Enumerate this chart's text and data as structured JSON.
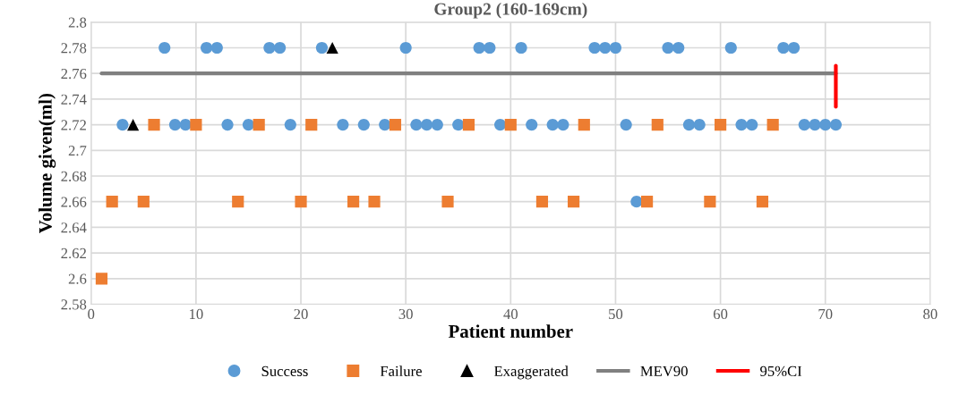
{
  "chart_data": {
    "type": "scatter",
    "title": "Group2 (160-169cm)",
    "xlabel": "Patient number",
    "ylabel": "Volume given(ml)",
    "xlim": [
      0,
      80
    ],
    "xticks": [
      0,
      10,
      20,
      30,
      40,
      50,
      60,
      70,
      80
    ],
    "ylim": [
      2.58,
      2.8
    ],
    "yticks": [
      {
        "value": 2.58,
        "label": "2.58"
      },
      {
        "value": 2.6,
        "label": "2.6"
      },
      {
        "value": 2.62,
        "label": "2.62"
      },
      {
        "value": 2.64,
        "label": "2.64"
      },
      {
        "value": 2.66,
        "label": "2.66"
      },
      {
        "value": 2.68,
        "label": "2.68"
      },
      {
        "value": 2.7,
        "label": "2.7"
      },
      {
        "value": 2.72,
        "label": "2.72"
      },
      {
        "value": 2.74,
        "label": "2.74"
      },
      {
        "value": 2.76,
        "label": "2.76"
      },
      {
        "value": 2.78,
        "label": "2.78"
      },
      {
        "value": 2.8,
        "label": "2.8"
      }
    ],
    "grid": true,
    "legend": "bottom",
    "series": [
      {
        "name": "Success",
        "marker": "circle",
        "color": "#5b9bd5",
        "x": [
          7,
          11,
          12,
          17,
          18,
          22,
          30,
          37,
          38,
          41,
          48,
          49,
          50,
          55,
          56,
          61,
          66,
          67,
          3,
          8,
          9,
          13,
          15,
          19,
          24,
          26,
          28,
          31,
          32,
          33,
          35,
          39,
          42,
          44,
          45,
          51,
          57,
          58,
          62,
          63,
          68,
          69,
          70,
          71,
          52
        ],
        "values": [
          2.78,
          2.78,
          2.78,
          2.78,
          2.78,
          2.78,
          2.78,
          2.78,
          2.78,
          2.78,
          2.78,
          2.78,
          2.78,
          2.78,
          2.78,
          2.78,
          2.78,
          2.78,
          2.72,
          2.72,
          2.72,
          2.72,
          2.72,
          2.72,
          2.72,
          2.72,
          2.72,
          2.72,
          2.72,
          2.72,
          2.72,
          2.72,
          2.72,
          2.72,
          2.72,
          2.72,
          2.72,
          2.72,
          2.72,
          2.72,
          2.72,
          2.72,
          2.72,
          2.72,
          2.66
        ]
      },
      {
        "name": "Failure",
        "marker": "square",
        "color": "#ed7d31",
        "x": [
          6,
          10,
          16,
          21,
          29,
          36,
          40,
          47,
          54,
          60,
          65,
          2,
          5,
          14,
          20,
          25,
          27,
          34,
          43,
          46,
          53,
          59,
          64,
          1
        ],
        "values": [
          2.72,
          2.72,
          2.72,
          2.72,
          2.72,
          2.72,
          2.72,
          2.72,
          2.72,
          2.72,
          2.72,
          2.66,
          2.66,
          2.66,
          2.66,
          2.66,
          2.66,
          2.66,
          2.66,
          2.66,
          2.66,
          2.66,
          2.66,
          2.6
        ]
      },
      {
        "name": "Exaggerated",
        "marker": "triangle",
        "color": "#000000",
        "x": [
          4,
          23
        ],
        "values": [
          2.72,
          2.78
        ]
      },
      {
        "name": "MEV90",
        "type": "line",
        "marker": "none",
        "line_style": "solid",
        "color": "#808080",
        "x": [
          1,
          71
        ],
        "values": [
          2.76,
          2.76
        ]
      },
      {
        "name": "95%CI",
        "type": "line",
        "marker": "none",
        "line_style": "solid",
        "color": "#ff0000",
        "x": [
          71,
          71
        ],
        "values": [
          2.734,
          2.766
        ]
      }
    ]
  }
}
